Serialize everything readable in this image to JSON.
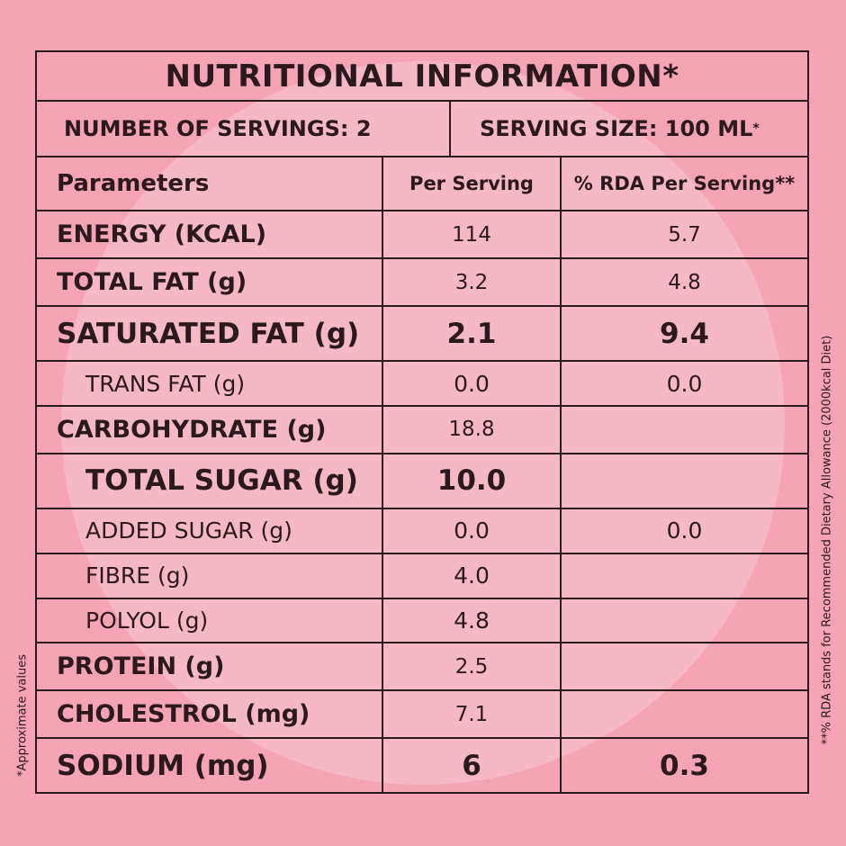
{
  "title": "NUTRITIONAL INFORMATION*",
  "servings": {
    "count_label": "NUMBER OF SERVINGS: 2",
    "size_label": "SERVING SIZE: 100 ML",
    "size_mark": "*"
  },
  "table": {
    "headers": [
      "Parameters",
      "Per Serving",
      "% RDA Per Serving**"
    ],
    "rows": [
      {
        "parameter": "ENERGY (KCAL)",
        "per_serving": "114",
        "rda": "5.7"
      },
      {
        "parameter": "TOTAL FAT (g)",
        "per_serving": "3.2",
        "rda": "4.8"
      },
      {
        "parameter": "SATURATED FAT (g)",
        "per_serving": "2.1",
        "rda": "9.4"
      },
      {
        "parameter": "TRANS FAT (g)",
        "per_serving": "0.0",
        "rda": "0.0"
      },
      {
        "parameter": "CARBOHYDRATE (g)",
        "per_serving": "18.8",
        "rda": ""
      },
      {
        "parameter": "TOTAL SUGAR (g)",
        "per_serving": "10.0",
        "rda": ""
      },
      {
        "parameter": "ADDED SUGAR (g)",
        "per_serving": "0.0",
        "rda": "0.0"
      },
      {
        "parameter": "FIBRE (g)",
        "per_serving": "4.0",
        "rda": ""
      },
      {
        "parameter": "POLYOL (g)",
        "per_serving": "4.8",
        "rda": ""
      },
      {
        "parameter": "PROTEIN (g)",
        "per_serving": "2.5",
        "rda": ""
      },
      {
        "parameter": "CHOLESTROL (mg)",
        "per_serving": "7.1",
        "rda": ""
      },
      {
        "parameter": "SODIUM (mg)",
        "per_serving": "6",
        "rda": "0.3"
      }
    ]
  },
  "notes": {
    "rda_note": "**% RDA stands for Recommended Dietary Allowance (2000kcal Diet)",
    "approx_note": "*Approximate values"
  },
  "colors": {
    "background": "#f5a3b5",
    "circle": "#f7b8c6",
    "ink": "#2a1a1e"
  }
}
